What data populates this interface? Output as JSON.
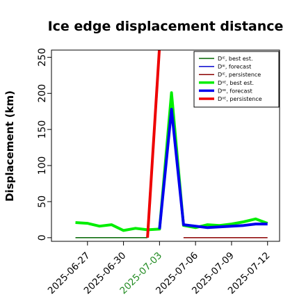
{
  "chart_data": {
    "type": "line",
    "title": "Ice edge displacement distance",
    "xlabel": "",
    "ylabel": "Displacement (km)",
    "xlim": [
      "2025-06-24",
      "2025-07-13"
    ],
    "ylim": [
      -5,
      260
    ],
    "yticks": [
      0,
      50,
      100,
      150,
      200,
      250
    ],
    "xticks": [
      {
        "label": "2025-06-27",
        "date": "2025-06-27",
        "color": "#000000"
      },
      {
        "label": "2025-06-30",
        "date": "2025-06-30",
        "color": "#000000"
      },
      {
        "label": "2025-07-03",
        "date": "2025-07-03",
        "color": "#228B22"
      },
      {
        "label": "2025-07-06",
        "date": "2025-07-06",
        "color": "#000000"
      },
      {
        "label": "2025-07-09",
        "date": "2025-07-09",
        "color": "#000000"
      },
      {
        "label": "2025-07-12",
        "date": "2025-07-12",
        "color": "#000000"
      }
    ],
    "legend_position": "top-right",
    "series": [
      {
        "name": "Dᴵᴱ, best est.",
        "color": "#006400",
        "width": 1.5,
        "x": [
          "2025-06-26",
          "2025-07-02"
        ],
        "y": [
          0,
          0
        ]
      },
      {
        "name": "Dᴵᴱ, forecast",
        "color": "#0000CD",
        "width": 1.5,
        "x": [],
        "y": []
      },
      {
        "name": "Dᴵᴱ, persistence",
        "color": "#8B0000",
        "width": 1.5,
        "x": [
          "2025-07-05",
          "2025-07-12"
        ],
        "y": [
          0,
          0
        ]
      },
      {
        "name": "Dᴵᴵᴱ, best est.",
        "color": "#00EE00",
        "width": 4,
        "x": [
          "2025-06-26",
          "2025-06-27",
          "2025-06-28",
          "2025-06-29",
          "2025-06-30",
          "2025-07-01",
          "2025-07-02",
          "2025-07-03",
          "2025-07-04",
          "2025-07-05",
          "2025-07-06",
          "2025-07-07",
          "2025-07-08",
          "2025-07-09",
          "2025-07-10",
          "2025-07-11",
          "2025-07-12"
        ],
        "y": [
          21,
          20,
          16,
          18,
          10,
          13,
          11,
          12,
          201,
          17,
          14,
          18,
          17,
          19,
          22,
          26,
          20
        ]
      },
      {
        "name": "Dᴵᴵᴱ, forecast",
        "color": "#0000EE",
        "width": 4,
        "x": [
          "2025-07-03",
          "2025-07-04",
          "2025-07-05",
          "2025-07-06",
          "2025-07-07",
          "2025-07-08",
          "2025-07-09",
          "2025-07-10",
          "2025-07-11",
          "2025-07-12"
        ],
        "y": [
          12,
          178,
          18,
          16,
          14,
          15,
          16,
          17,
          19,
          19
        ]
      },
      {
        "name": "Dᴵᴵᴱ, persistence",
        "color": "#EE0000",
        "width": 4,
        "x": [
          "2025-07-02",
          "2025-07-03"
        ],
        "y": [
          0,
          265
        ]
      }
    ]
  }
}
